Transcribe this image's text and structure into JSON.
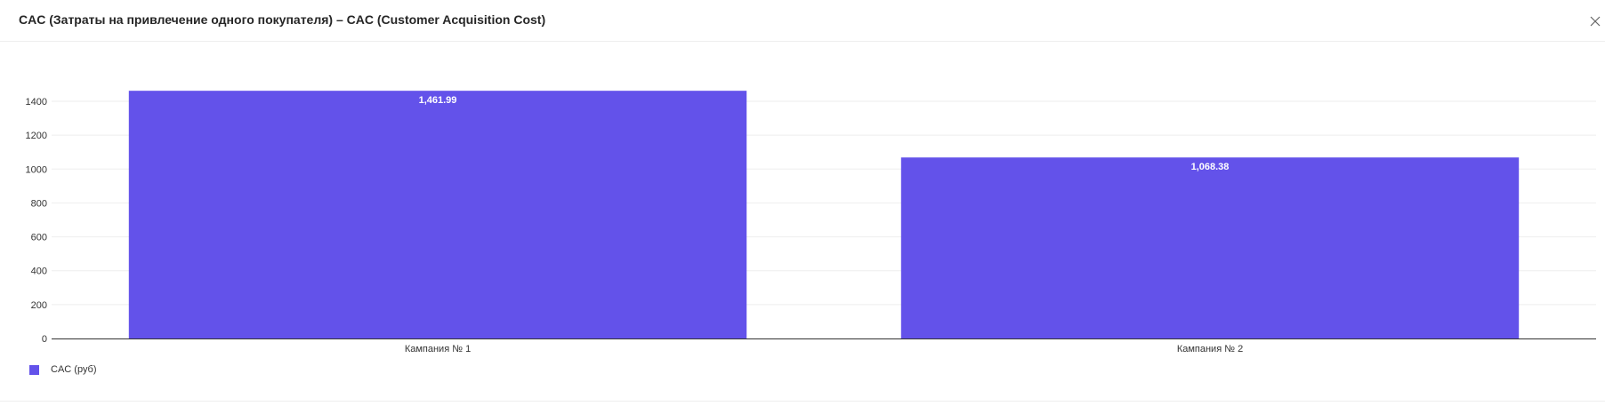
{
  "header": {
    "title": "CAC (Затраты на привлечение одного покупателя) – CAC (Customer Acquisition Cost)"
  },
  "colors": {
    "bar": "#6352EA",
    "grid": "#eeeeee",
    "axis": "#333333"
  },
  "chart_data": {
    "type": "bar",
    "categories": [
      "Кампания № 1",
      "Кампания № 2"
    ],
    "series": [
      {
        "name": "CAC (руб)",
        "values": [
          1461.99,
          1068.38
        ],
        "labels": [
          "1,461.99",
          "1,068.38"
        ]
      }
    ],
    "ylim": [
      0,
      1400
    ],
    "yticks": [
      0,
      200,
      400,
      600,
      800,
      1000,
      1200,
      1400
    ],
    "grid": true,
    "legend_position": "bottom-left"
  }
}
